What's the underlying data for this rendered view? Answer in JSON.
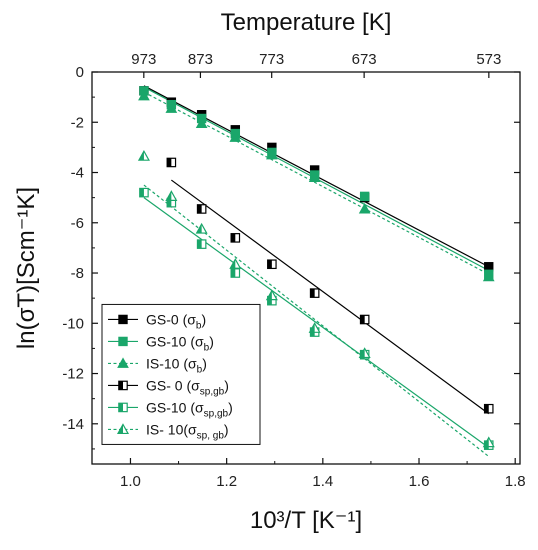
{
  "chart_data": {
    "type": "scatter",
    "title": "",
    "xlabel": "10³/T [K⁻¹]",
    "ylabel": "ln(σT)[Scm⁻¹K]",
    "top_axis_label": "Temperature [K]",
    "xlim": [
      0.92,
      1.81
    ],
    "ylim": [
      -15.6,
      0
    ],
    "x_ticks": [
      1.0,
      1.2,
      1.4,
      1.6,
      1.8
    ],
    "y_ticks": [
      0,
      -2,
      -4,
      -6,
      -8,
      -10,
      -12,
      -14
    ],
    "top_ticks": [
      973,
      873,
      773,
      673,
      573
    ],
    "grid": false,
    "legend_position": "bottom-left",
    "colors": {
      "black": "#000000",
      "green": "#1aa66a"
    },
    "series": [
      {
        "name": "GS-0 (σb)",
        "color": "#000000",
        "marker": "square-filled",
        "line": "solid",
        "points": [
          [
            1.028,
            -0.75
          ],
          [
            1.085,
            -1.2
          ],
          [
            1.148,
            -1.7
          ],
          [
            1.218,
            -2.3
          ],
          [
            1.294,
            -3.0
          ],
          [
            1.383,
            -3.9
          ],
          [
            1.487,
            -5.0
          ],
          [
            1.745,
            -7.75
          ]
        ],
        "fit": [
          [
            1.028,
            -0.55
          ],
          [
            1.745,
            -7.75
          ]
        ]
      },
      {
        "name": "GS-10 (σb)",
        "color": "#1aa66a",
        "marker": "square-filled",
        "line": "solid",
        "points": [
          [
            1.028,
            -0.75
          ],
          [
            1.085,
            -1.3
          ],
          [
            1.148,
            -1.85
          ],
          [
            1.218,
            -2.45
          ],
          [
            1.294,
            -3.2
          ],
          [
            1.383,
            -4.1
          ],
          [
            1.487,
            -4.95
          ],
          [
            1.745,
            -8.05
          ]
        ],
        "fit": [
          [
            1.028,
            -0.6
          ],
          [
            1.745,
            -7.9
          ]
        ]
      },
      {
        "name": "IS-10 (σb)",
        "color": "#1aa66a",
        "marker": "triangle-filled",
        "line": "dashed",
        "points": [
          [
            1.028,
            -0.95
          ],
          [
            1.085,
            -1.45
          ],
          [
            1.148,
            -2.05
          ],
          [
            1.218,
            -2.6
          ],
          [
            1.294,
            -3.3
          ],
          [
            1.383,
            -4.2
          ],
          [
            1.487,
            -5.45
          ],
          [
            1.745,
            -8.15
          ]
        ],
        "fit": [
          [
            1.028,
            -0.8
          ],
          [
            1.745,
            -8.05
          ]
        ]
      },
      {
        "name": "GS- 0 (σsp,gb)",
        "color": "#000000",
        "marker": "square-half",
        "line": "solid",
        "points": [
          [
            1.085,
            -3.6
          ],
          [
            1.148,
            -5.45
          ],
          [
            1.218,
            -6.6
          ],
          [
            1.294,
            -7.65
          ],
          [
            1.383,
            -8.8
          ],
          [
            1.487,
            -9.85
          ],
          [
            1.745,
            -13.4
          ]
        ],
        "fit": [
          [
            1.085,
            -4.3
          ],
          [
            1.745,
            -13.6
          ]
        ]
      },
      {
        "name": "GS-10 (σsp,gb)",
        "color": "#1aa66a",
        "marker": "square-half",
        "line": "solid",
        "points": [
          [
            1.028,
            -4.8
          ],
          [
            1.085,
            -5.2
          ],
          [
            1.148,
            -6.85
          ],
          [
            1.218,
            -8.0
          ],
          [
            1.294,
            -9.1
          ],
          [
            1.383,
            -10.35
          ],
          [
            1.487,
            -11.25
          ],
          [
            1.745,
            -14.85
          ]
        ],
        "fit": [
          [
            1.028,
            -5.0
          ],
          [
            1.745,
            -14.95
          ]
        ]
      },
      {
        "name": "IS- 10(σsp, gb)",
        "color": "#1aa66a",
        "marker": "triangle-half",
        "line": "dashed",
        "points": [
          [
            1.028,
            -3.35
          ],
          [
            1.085,
            -4.95
          ],
          [
            1.148,
            -6.25
          ],
          [
            1.218,
            -7.65
          ],
          [
            1.294,
            -8.9
          ],
          [
            1.383,
            -10.2
          ],
          [
            1.487,
            -11.2
          ],
          [
            1.745,
            -14.75
          ]
        ],
        "fit": [
          [
            1.028,
            -4.5
          ],
          [
            1.745,
            -15.3
          ]
        ]
      }
    ],
    "legend": [
      {
        "base": "GS-0 (σ",
        "sub": "b",
        "tail": ")"
      },
      {
        "base": "GS-10 (σ",
        "sub": "b",
        "tail": ")"
      },
      {
        "base": "IS-10 (σ",
        "sub": "b",
        "tail": ")"
      },
      {
        "base": "GS- 0 (σ",
        "sub": "sp,gb",
        "tail": ")"
      },
      {
        "base": "GS-10 (σ",
        "sub": "sp,gb",
        "tail": ")"
      },
      {
        "base": "IS- 10(σ",
        "sub": "sp, gb",
        "tail": ")"
      }
    ]
  }
}
